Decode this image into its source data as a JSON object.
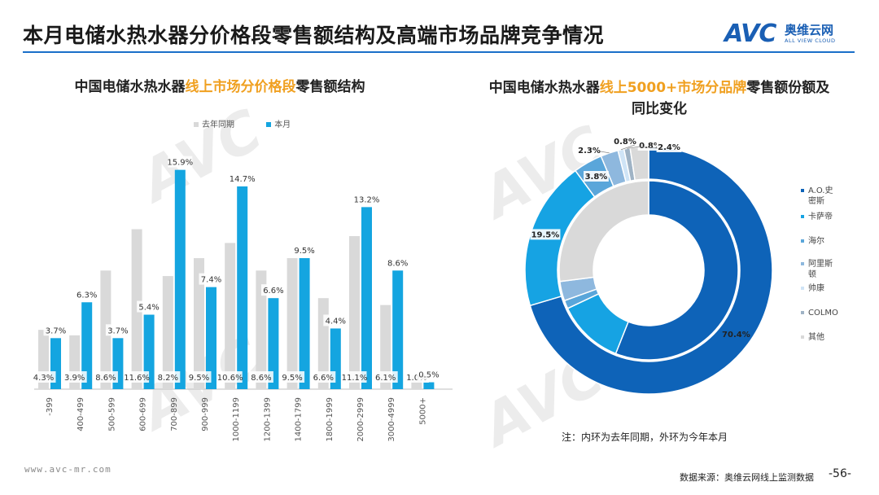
{
  "header": {
    "title": "本月电储水热水器分价格段零售额结构及高端市场品牌竞争情况",
    "logo_text": "AVC",
    "logo_cn": "奥维云网",
    "logo_en": "ALL VIEW CLOUD"
  },
  "left_chart": {
    "title_part1": "中国电储水热水器",
    "title_highlight": "线上市场分价格段",
    "title_part2": "零售额结构"
  },
  "right_chart": {
    "title_part1": "中国电储水热水器",
    "title_highlight": "线上5000+市场分品牌",
    "title_part2": "零售额份额及同比变化"
  },
  "note": "注：内环为去年同期，外环为今年本月",
  "footer": {
    "website": "www.avc-mr.com",
    "source": "数据来源：奥维云网线上监测数据",
    "page": "-56-"
  },
  "colors": {
    "last_year": "#d9d9d9",
    "this_month": "#14a5e0",
    "accent": "#f0a020",
    "brand_blue": "#1a5fb4"
  },
  "chart_data": [
    {
      "type": "bar",
      "categories": [
        "-399",
        "400-499",
        "500-599",
        "600-699",
        "700-899",
        "900-999",
        "1000-1199",
        "1200-1399",
        "1400-1799",
        "1800-1999",
        "2000-2999",
        "3000-4999",
        "5000+"
      ],
      "series": [
        {
          "name": "去年同期",
          "values": [
            4.3,
            3.9,
            8.6,
            11.6,
            8.2,
            9.5,
            10.6,
            8.6,
            9.5,
            6.6,
            11.1,
            6.1,
            1.0
          ],
          "labels": [
            "4.3%",
            "3.9%",
            "8.6%",
            "11.6%",
            "8.2%",
            "9.5%",
            "10.6%",
            "8.6%",
            "9.5%",
            "6.6%",
            "11.1%",
            "6.1%",
            "1.0%"
          ]
        },
        {
          "name": "本月",
          "values": [
            3.7,
            6.3,
            3.7,
            5.4,
            15.9,
            7.4,
            14.7,
            6.6,
            9.5,
            4.4,
            13.2,
            8.6,
            0.5
          ],
          "labels": [
            "3.7%",
            "6.3%",
            "3.7%",
            "5.4%",
            "15.9%",
            "7.4%",
            "14.7%",
            "6.6%",
            "9.5%",
            "4.4%",
            "13.2%",
            "8.6%",
            "0.5%"
          ]
        }
      ],
      "ylim": [
        0,
        17
      ],
      "legend": "top"
    },
    {
      "type": "pie",
      "variant": "donut",
      "brands": [
        "A.O.史密斯",
        "卡萨帝",
        "海尔",
        "阿里斯顿",
        "帅康",
        "COLMO",
        "其他"
      ],
      "brand_colors": [
        "#0e63b8",
        "#16a3e3",
        "#5aa6da",
        "#8eb8de",
        "#cfe4f6",
        "#9fb3c5",
        "#d9d9d9"
      ],
      "outer_ring": [
        {
          "name": "A.O.史密斯",
          "value": 70.4,
          "label": "70.4%"
        },
        {
          "name": "卡萨帝",
          "value": 19.5,
          "label": "19.5%"
        },
        {
          "name": "海尔",
          "value": 3.8,
          "label": "3.8%"
        },
        {
          "name": "阿里斯顿",
          "value": 2.3,
          "label": "2.3%"
        },
        {
          "name": "帅康",
          "value": 0.8,
          "label": "0.8%"
        },
        {
          "name": "COLMO",
          "value": 0.8,
          "label": "0.8%"
        },
        {
          "name": "其他",
          "value": 2.4,
          "label": "2.4%"
        }
      ],
      "inner_ring": [
        {
          "name": "A.O.史密斯",
          "value": 56.0
        },
        {
          "name": "卡萨帝",
          "value": 12.0
        },
        {
          "name": "海尔",
          "value": 1.5
        },
        {
          "name": "阿里斯顿",
          "value": 3.5
        },
        {
          "name": "帅康",
          "value": 0.0
        },
        {
          "name": "COLMO",
          "value": 0.0
        },
        {
          "name": "其他",
          "value": 27.0
        }
      ]
    }
  ]
}
